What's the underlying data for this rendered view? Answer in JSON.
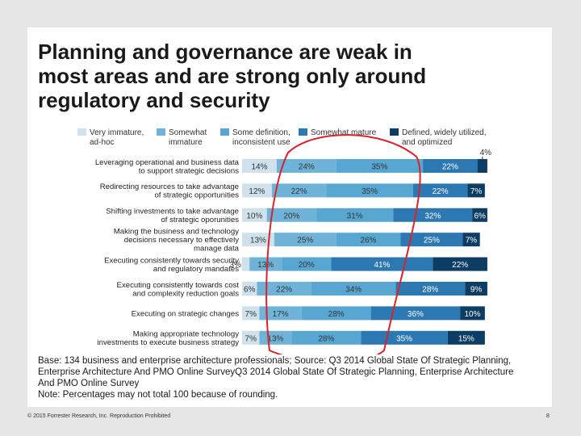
{
  "slide": {
    "title_lines": [
      "Planning and governance are weak in",
      "most areas and are strong only around",
      "regulatory and security"
    ],
    "note_lines": [
      "Base: 134 business and enterprise architecture professionals; Source: Q3 2014 Global State Of Strategic Planning,",
      "Enterprise Architecture And PMO Online SurveyQ3 2014 Global State Of Strategic Planning, Enterprise Architecture",
      "And PMO Online Survey",
      "Note: Percentages may not total 100 because of rounding."
    ],
    "footer": {
      "copyright": "© 2015 Forrester Research, Inc. Reproduction Prohibited",
      "page_number": "8"
    }
  },
  "chart_data": {
    "type": "bar",
    "orientation": "horizontal-stacked",
    "title": "Planning and governance are weak in most areas and are strong only around regulatory and security",
    "categories": [
      [
        "Leveraging operational and business data",
        "to support strategic decisions"
      ],
      [
        "Redirecting resources to take advantage",
        "of strategic opportunities"
      ],
      [
        "Shifting investments to take advantage",
        "of strategic oporunities"
      ],
      [
        "Making the business and technology",
        "decisions necessary to effectively",
        "manage data"
      ],
      [
        "Executing consistently towards security",
        "and regulatory mandates"
      ],
      [
        "Executing consistently towards cost",
        "and complexity reduction goals"
      ],
      [
        "Executing on strategic changes"
      ],
      [
        "Making appropriate technology",
        "investments to execute business strategy"
      ]
    ],
    "series": [
      {
        "name": [
          "Very immature,",
          "ad-hoc"
        ],
        "color": "#cfe1ec",
        "values": [
          14,
          12,
          10,
          13,
          3,
          6,
          7,
          7
        ]
      },
      {
        "name": [
          "Somewhat",
          "immature"
        ],
        "color": "#6fb3d8",
        "values": [
          24,
          22,
          20,
          25,
          13,
          22,
          17,
          13
        ]
      },
      {
        "name": [
          "Some definition,",
          "inconsistent use"
        ],
        "color": "#58a6d2",
        "values": [
          35,
          35,
          31,
          26,
          20,
          34,
          28,
          28
        ]
      },
      {
        "name": [
          "Somewhat mature"
        ],
        "color": "#2c78b2",
        "values": [
          22,
          22,
          32,
          25,
          41,
          28,
          36,
          35
        ]
      },
      {
        "name": [
          "Defined, widely utilized,",
          "and optimized"
        ],
        "color": "#0d3d62",
        "values": [
          4,
          7,
          6,
          7,
          22,
          9,
          10,
          15
        ]
      }
    ],
    "xlim": [
      0,
      100
    ],
    "annotations": [
      "red oval highlighting the middle (\"Some definition\" / \"Somewhat immature\") region"
    ]
  }
}
